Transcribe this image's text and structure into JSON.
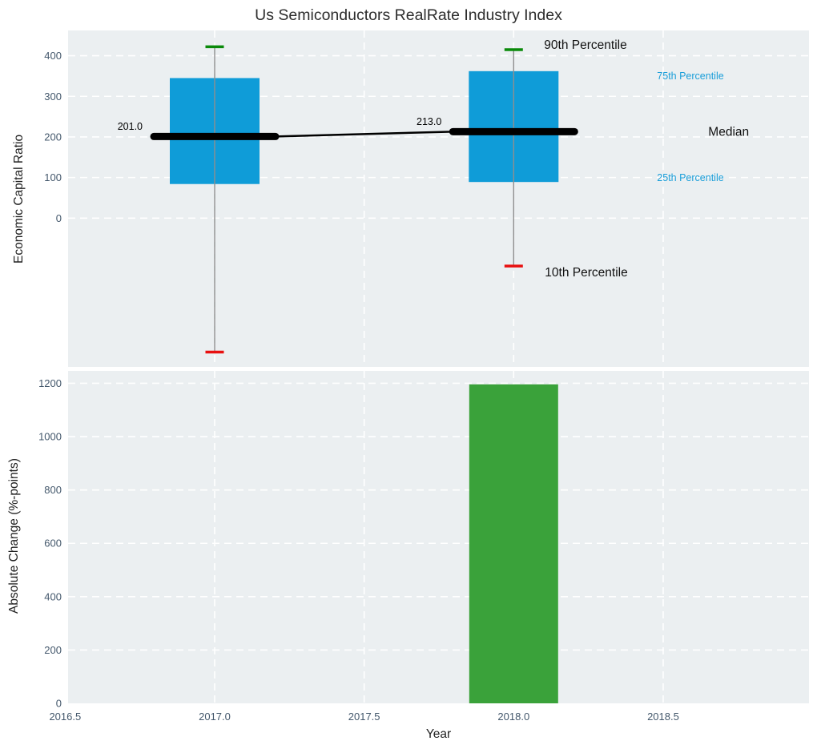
{
  "title": "Us Semiconductors RealRate Industry Index",
  "colors": {
    "box_fill": "#0f9cd8",
    "bar_fill": "#3aa23a",
    "p90_cap": "#0a8a0a",
    "p10_cap": "#e81010",
    "median_line": "#000000",
    "whisker": "#8f8f8f",
    "plot_bg": "#ebeff1",
    "grid": "#ffffff",
    "tick_label": "#44586c",
    "axis_title": "#1f1f1f",
    "title_color": "#2d2d2d",
    "annotation_dark": "#111111",
    "annotation_blue": "#1a9ed9"
  },
  "chart_data": [
    {
      "type": "box",
      "title": "Us Semiconductors RealRate Industry Index",
      "ylabel": "Economic Capital Ratio",
      "x": [
        2017.0,
        2018.0
      ],
      "series": [
        {
          "x": 2017.0,
          "median": 201.0,
          "median_label": "201.0",
          "q25": 84,
          "q75": 345,
          "p10": -330,
          "p90": 422
        },
        {
          "x": 2018.0,
          "median": 213.0,
          "median_label": "213.0",
          "q25": 89,
          "q75": 362,
          "p10": -118,
          "p90": 415
        }
      ],
      "ylim": [
        -366,
        462
      ],
      "xlim": [
        2016.51,
        2018.99
      ],
      "yticks": [
        0,
        100,
        200,
        300,
        400
      ],
      "ytick_labels": [
        "0",
        "100",
        "200",
        "300",
        "400"
      ],
      "grid": true,
      "legend": "none",
      "annotations": [
        {
          "text": "90th Percentile",
          "style": "dark",
          "size": "large",
          "anchor": "p90"
        },
        {
          "text": "75th Percentile",
          "style": "blue",
          "size": "small",
          "anchor": "q75"
        },
        {
          "text": "Median",
          "style": "dark",
          "size": "large",
          "anchor": "median"
        },
        {
          "text": "25th Percentile",
          "style": "blue",
          "size": "small",
          "anchor": "q25"
        },
        {
          "text": "10th Percentile",
          "style": "dark",
          "size": "large",
          "anchor": "p10"
        }
      ]
    },
    {
      "type": "bar",
      "ylabel": "Absolute Change (%-points)",
      "xlabel": "Year",
      "categories": [
        2018.0
      ],
      "values": [
        1196
      ],
      "ylim": [
        0,
        1246
      ],
      "xlim": [
        2016.51,
        2018.99
      ],
      "yticks": [
        0,
        200,
        400,
        600,
        800,
        1000,
        1200
      ],
      "ytick_labels": [
        "0",
        "200",
        "400",
        "600",
        "800",
        "1000",
        "1200"
      ],
      "xticks": [
        2016.5,
        2017.0,
        2017.5,
        2018.0,
        2018.5
      ],
      "xtick_labels": [
        "2016.5",
        "2017.0",
        "2017.5",
        "2018.0",
        "2018.5"
      ],
      "grid": true,
      "legend": "none"
    }
  ]
}
